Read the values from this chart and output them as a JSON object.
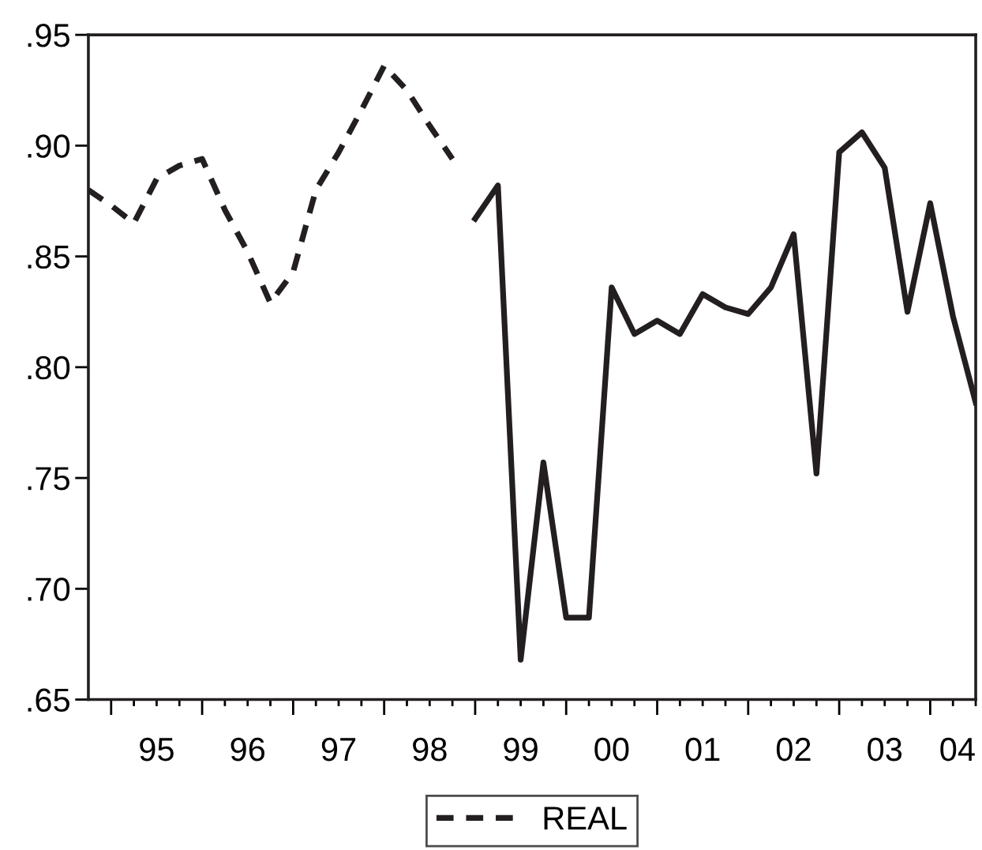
{
  "chart_data": {
    "type": "line",
    "categories": [
      null,
      null,
      null,
      "95",
      null,
      null,
      null,
      "96",
      null,
      null,
      null,
      "97",
      null,
      null,
      null,
      "98",
      null,
      null,
      null,
      "99",
      null,
      null,
      null,
      "00",
      null,
      null,
      null,
      "01",
      null,
      null,
      null,
      "02",
      null,
      null,
      null,
      "03",
      null,
      null,
      null,
      "04"
    ],
    "series": [
      {
        "name": "REAL",
        "color": "#231f20",
        "line_style": "dashed",
        "values": [
          0.88,
          0.873,
          0.865,
          0.885,
          0.891,
          0.894,
          0.871,
          0.852,
          0.829,
          0.843,
          0.88,
          0.897,
          0.916,
          0.936,
          0.925,
          0.909,
          0.894,
          null,
          null,
          null,
          null,
          null,
          null,
          null,
          null,
          null,
          null,
          null,
          null,
          null,
          null,
          null,
          null,
          null,
          null,
          null,
          null,
          null,
          null,
          null
        ]
      },
      {
        "color": "#231f20",
        "line_style": "solid",
        "values": [
          null,
          null,
          null,
          null,
          null,
          null,
          null,
          null,
          null,
          null,
          null,
          null,
          null,
          null,
          null,
          null,
          null,
          0.867,
          0.882,
          0.668,
          0.757,
          0.687,
          0.687,
          0.836,
          0.815,
          0.821,
          0.815,
          0.833,
          0.827,
          0.824,
          0.836,
          0.86,
          0.752,
          0.897,
          0.906,
          0.89,
          0.825,
          0.874,
          0.823,
          0.784
        ]
      }
    ],
    "ylim": [
      0.65,
      0.95
    ],
    "yticks": [
      {
        "value": 0.65,
        "label": ".65"
      },
      {
        "value": 0.7,
        "label": ".70"
      },
      {
        "value": 0.75,
        "label": ".75"
      },
      {
        "value": 0.8,
        "label": ".80"
      },
      {
        "value": 0.85,
        "label": ".85"
      },
      {
        "value": 0.9,
        "label": ".90"
      },
      {
        "value": 0.95,
        "label": ".95"
      }
    ],
    "grid": false,
    "legend": "bottom",
    "marker": "none"
  }
}
